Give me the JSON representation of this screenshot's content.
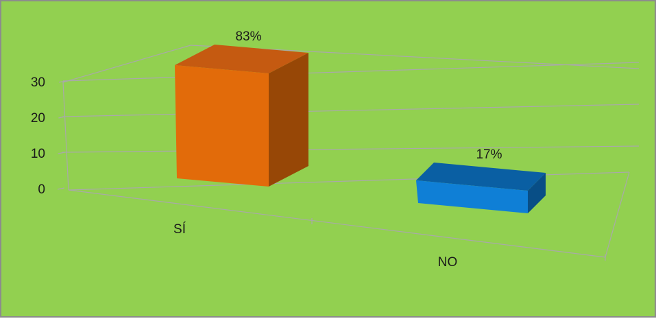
{
  "colors": {
    "background": "#92d050",
    "border": "#8c8c8c",
    "gridline": "#a9a9a9",
    "bar_si_front": "#e26b0a",
    "bar_si_top": "#c55a11",
    "bar_si_side": "#974706",
    "bar_no_front": "#0f7fd6",
    "bar_no_top": "#0a5fa3",
    "bar_no_side": "#084e86"
  },
  "chart_data": {
    "type": "bar",
    "style": "3d-column",
    "categories": [
      "SÍ",
      "NO"
    ],
    "values": [
      25,
      5
    ],
    "data_labels": [
      "83%",
      "17%"
    ],
    "yticks": [
      0,
      10,
      20,
      30
    ],
    "ylim": [
      0,
      30
    ],
    "title": "",
    "xlabel": "",
    "ylabel": "",
    "grid": true,
    "legend": "none"
  }
}
